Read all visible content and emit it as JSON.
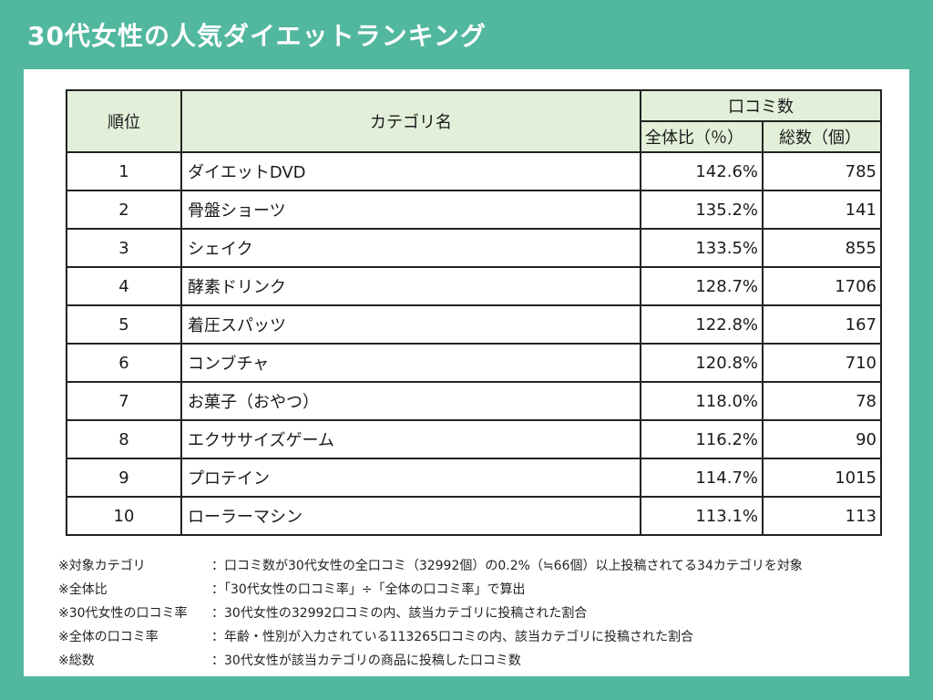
{
  "title": "30代女性の人気ダイエットランキング",
  "table": {
    "headers": {
      "rank": "順位",
      "category": "カテゴリ名",
      "group": "口コミ数",
      "pct": "全体比（％）",
      "count": "総数（個）"
    },
    "rows": [
      {
        "rank": "1",
        "category": "ダイエットDVD",
        "pct": "142.6%",
        "count": "785"
      },
      {
        "rank": "2",
        "category": "骨盤ショーツ",
        "pct": "135.2%",
        "count": "141"
      },
      {
        "rank": "3",
        "category": "シェイク",
        "pct": "133.5%",
        "count": "855"
      },
      {
        "rank": "4",
        "category": "酵素ドリンク",
        "pct": "128.7%",
        "count": "1706"
      },
      {
        "rank": "5",
        "category": "着圧スパッツ",
        "pct": "122.8%",
        "count": "167"
      },
      {
        "rank": "6",
        "category": "コンブチャ",
        "pct": "120.8%",
        "count": "710"
      },
      {
        "rank": "7",
        "category": "お菓子（おやつ）",
        "pct": "118.0%",
        "count": "78"
      },
      {
        "rank": "8",
        "category": "エクササイズゲーム",
        "pct": "116.2%",
        "count": "90"
      },
      {
        "rank": "9",
        "category": "プロテイン",
        "pct": "114.7%",
        "count": "1015"
      },
      {
        "rank": "10",
        "category": "ローラーマシン",
        "pct": "113.1%",
        "count": "113"
      }
    ]
  },
  "notes": [
    {
      "label": "※対象カテゴリ",
      "text": "：口コミ数が30代女性の全口コミ（32992個）の0.2%（≒66個）以上投稿されてる34カテゴリを対象"
    },
    {
      "label": "※全体比",
      "text": "：「30代女性の口コミ率」÷「全体の口コミ率」で算出"
    },
    {
      "label": "※30代女性の口コミ率",
      "text": "：30代女性の32992口コミの内、該当カテゴリに投稿された割合"
    },
    {
      "label": "※全体の口コミ率",
      "text": "：年齢・性別が入力されている113265口コミの内、該当カテゴリに投稿された割合"
    },
    {
      "label": "※総数",
      "text": "：30代女性が該当カテゴリの商品に投稿した口コミ数"
    }
  ],
  "colors": {
    "background": "#52b79f",
    "header_fill": "#e2efd9"
  }
}
